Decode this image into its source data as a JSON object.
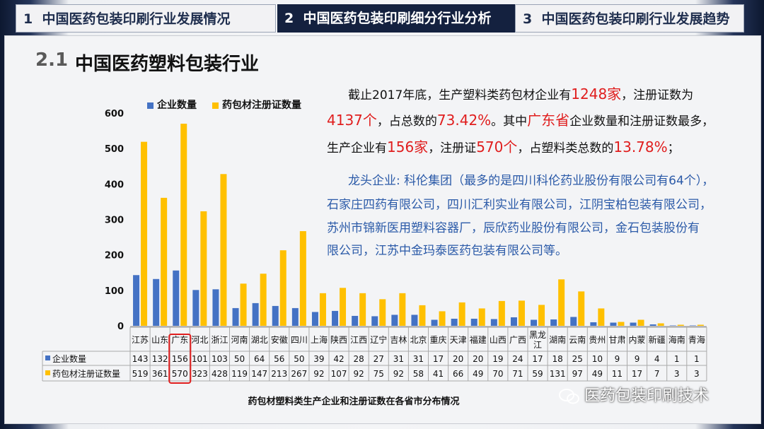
{
  "tabs": [
    {
      "num": "1",
      "label": "中国医药包装印刷行业发展情况"
    },
    {
      "num": "2",
      "label": "中国医药包装印刷细分行业分析"
    },
    {
      "num": "3",
      "label": "中国医药包装印刷行业发展趋势"
    }
  ],
  "section": {
    "num": "2.1",
    "title": "中国医药塑料包装行业"
  },
  "text": {
    "p1": [
      "截止2017年底，生产塑料类药包材企业有",
      "1248家",
      "，注册证数为"
    ],
    "p2": [
      "4137个",
      "，占总数的",
      "73.42%",
      "。其中",
      "广东省",
      "企业数量和注册证数最多，"
    ],
    "p3": [
      "生产企业有",
      "156家",
      "，注册证",
      "570个",
      "，占塑料类总数的",
      "13.78%",
      "；"
    ],
    "p4": [
      "龙头企业: 科伦集团（最多的是四川科伦药业股份有限公司有64个），"
    ],
    "p5": [
      "石家庄四药有限公司，四川汇利实业有限公司，江阴宝柏包装有限公司，"
    ],
    "p6": [
      "苏州市锦新医用塑料容器厂，辰欣药业股份有限公司，金石包装股份有"
    ],
    "p7": [
      "限公司，江苏中金玛泰医药包装有限公司等。"
    ]
  },
  "watermark": "医药包装印刷技术",
  "colors": {
    "series1": "#4472c4",
    "series2": "#ffc000",
    "highlight": "#e01e1e",
    "tab_active": "#14213f"
  },
  "highlight_category": "广东",
  "chart_data": {
    "type": "bar",
    "title": "药包材塑料类生产企业和注册证数在各省市分布情况",
    "categories": [
      "江苏",
      "山东",
      "广东",
      "河北",
      "浙江",
      "河南",
      "湖北",
      "安徽",
      "四川",
      "上海",
      "陕西",
      "江西",
      "辽宁",
      "吉林",
      "北京",
      "重庆",
      "天津",
      "福建",
      "山西",
      "广西",
      "黑龙江",
      "湖南",
      "云南",
      "贵州",
      "甘肃",
      "内蒙",
      "新疆",
      "海南",
      "青海"
    ],
    "series": [
      {
        "name": "企业数量",
        "color": "#4472c4",
        "values": [
          143,
          132,
          156,
          101,
          103,
          50,
          64,
          56,
          50,
          39,
          42,
          28,
          27,
          31,
          31,
          17,
          20,
          20,
          19,
          24,
          17,
          18,
          25,
          10,
          9,
          9,
          4,
          1,
          1
        ]
      },
      {
        "name": "药包材注册证数量",
        "color": "#ffc000",
        "values": [
          519,
          361,
          570,
          323,
          428,
          119,
          147,
          213,
          267,
          92,
          107,
          92,
          75,
          92,
          58,
          41,
          66,
          49,
          70,
          71,
          59,
          131,
          97,
          49,
          11,
          17,
          7,
          3,
          3
        ]
      }
    ],
    "ylim": [
      0,
      600
    ],
    "yticks": [
      0,
      100,
      200,
      300,
      400,
      500,
      600
    ],
    "legend": "top-left",
    "grid": false,
    "data_table": true
  }
}
